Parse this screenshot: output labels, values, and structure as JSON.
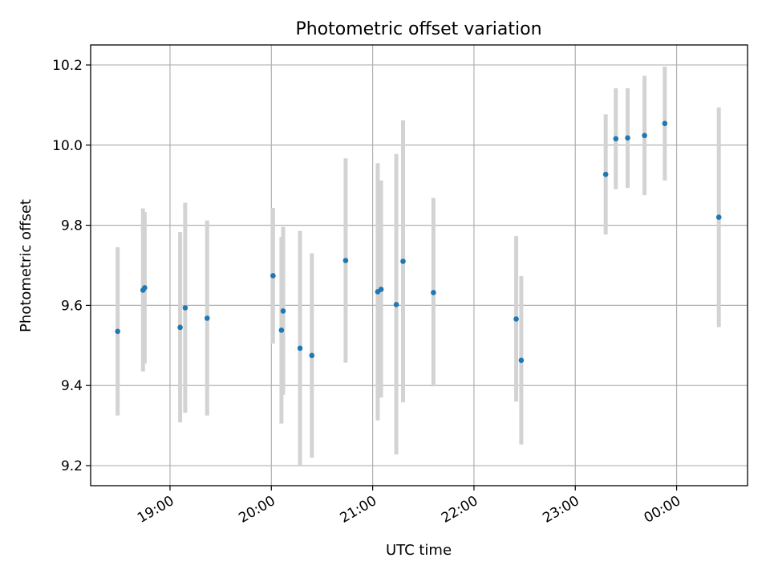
{
  "chart_data": {
    "type": "scatter",
    "title": "Photometric offset variation",
    "xlabel": "UTC time",
    "ylabel": "Photometric offset",
    "x_ticks": [
      {
        "value": "19:00",
        "label": "19:00"
      },
      {
        "value": "20:00",
        "label": "20:00"
      },
      {
        "value": "21:00",
        "label": "21:00"
      },
      {
        "value": "22:00",
        "label": "22:00"
      },
      {
        "value": "23:00",
        "label": "23:00"
      },
      {
        "value": "00:00",
        "label": "00:00"
      }
    ],
    "y_ticks": [
      {
        "value": 9.2,
        "label": "9.2"
      },
      {
        "value": 9.4,
        "label": "9.4"
      },
      {
        "value": 9.6,
        "label": "9.6"
      },
      {
        "value": 9.8,
        "label": "9.8"
      },
      {
        "value": 10.0,
        "label": "10.0"
      },
      {
        "value": 10.2,
        "label": "10.2"
      }
    ],
    "xlim": [
      "18:13",
      "00:42"
    ],
    "ylim": [
      9.15,
      10.25
    ],
    "grid": true,
    "colors": {
      "point": "#1f77b4",
      "errorbar": "#d3d3d3",
      "grid": "#b0b0b0"
    },
    "points": [
      {
        "time": "18:29",
        "y": 9.535,
        "low": 9.325,
        "high": 9.745
      },
      {
        "time": "18:44",
        "y": 9.638,
        "low": 9.435,
        "high": 9.842
      },
      {
        "time": "18:45",
        "y": 9.644,
        "low": 9.455,
        "high": 9.833
      },
      {
        "time": "19:06",
        "y": 9.545,
        "low": 9.308,
        "high": 9.783
      },
      {
        "time": "19:09",
        "y": 9.594,
        "low": 9.332,
        "high": 9.856
      },
      {
        "time": "19:22",
        "y": 9.568,
        "low": 9.325,
        "high": 9.812
      },
      {
        "time": "20:01",
        "y": 9.674,
        "low": 9.505,
        "high": 9.843
      },
      {
        "time": "20:06",
        "y": 9.538,
        "low": 9.305,
        "high": 9.771
      },
      {
        "time": "20:07",
        "y": 9.586,
        "low": 9.377,
        "high": 9.796
      },
      {
        "time": "20:17",
        "y": 9.493,
        "low": 9.2,
        "high": 9.786
      },
      {
        "time": "20:24",
        "y": 9.475,
        "low": 9.22,
        "high": 9.73
      },
      {
        "time": "20:44",
        "y": 9.712,
        "low": 9.457,
        "high": 9.967
      },
      {
        "time": "21:03",
        "y": 9.634,
        "low": 9.313,
        "high": 9.955
      },
      {
        "time": "21:05",
        "y": 9.64,
        "low": 9.37,
        "high": 9.912
      },
      {
        "time": "21:14",
        "y": 9.602,
        "low": 9.228,
        "high": 9.978
      },
      {
        "time": "21:18",
        "y": 9.71,
        "low": 9.358,
        "high": 10.062
      },
      {
        "time": "21:36",
        "y": 9.632,
        "low": 9.398,
        "high": 9.868
      },
      {
        "time": "22:25",
        "y": 9.566,
        "low": 9.36,
        "high": 9.773
      },
      {
        "time": "22:28",
        "y": 9.463,
        "low": 9.253,
        "high": 9.673
      },
      {
        "time": "23:18",
        "y": 9.927,
        "low": 9.777,
        "high": 10.077
      },
      {
        "time": "23:24",
        "y": 10.016,
        "low": 9.89,
        "high": 10.142
      },
      {
        "time": "23:31",
        "y": 10.018,
        "low": 9.893,
        "high": 10.142
      },
      {
        "time": "23:41",
        "y": 10.024,
        "low": 9.875,
        "high": 10.173
      },
      {
        "time": "23:53",
        "y": 10.054,
        "low": 9.912,
        "high": 10.196
      },
      {
        "time": "00:25",
        "y": 9.82,
        "low": 9.546,
        "high": 10.094
      }
    ]
  }
}
